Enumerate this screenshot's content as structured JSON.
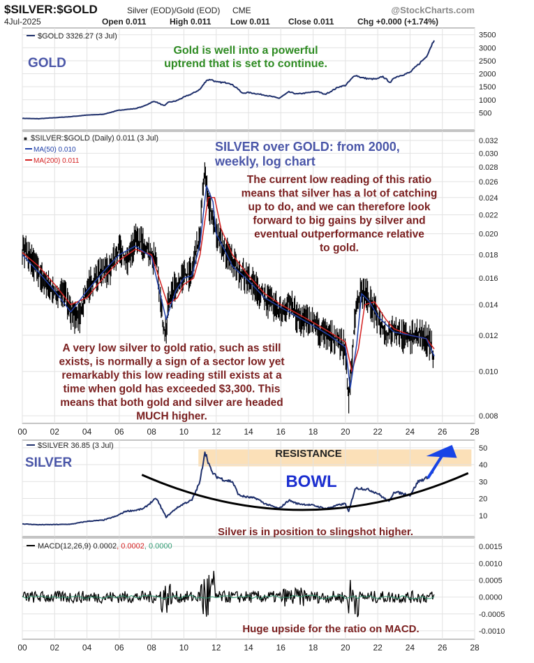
{
  "header": {
    "symbol": "$SILVER:$GOLD",
    "desc": "Silver (EOD)/Gold (EOD)",
    "exchange": "CME",
    "watermark": "@StockCharts.com",
    "date": "4Jul-2025",
    "open": "Open 0.011",
    "high": "High 0.011",
    "low": "Low 0.011",
    "close": "Close 0.011",
    "chg": "Chg +0.000 (+1.74%)"
  },
  "annotations": {
    "gold_label": "GOLD",
    "gold_note_1": "Gold is well into a powerful",
    "gold_note_2": "uptrend that is set to continue.",
    "ratio_title_1": "SILVER over GOLD: from 2000,",
    "ratio_title_2": "weekly, log chart",
    "ratio_note": [
      "The current low reading of this ratio",
      "means that silver has a lot of catching",
      "up to do, and we can therefore look",
      "forward to big gains by silver and",
      "eventual outperformance relative",
      "to gold."
    ],
    "ratio_low_note": [
      "A very low silver to  gold ratio, such as still",
      "exists, is normally a sign of a sector low yet",
      "remarkably this low reading still exists at a",
      "time when gold has exceeded $3,300. This",
      "means that both gold and silver are headed",
      "MUCH higher."
    ],
    "silver_label": "SILVER",
    "resistance": "RESISTANCE",
    "bowl": "BOWL",
    "silver_note": "Silver is in position to slingshot higher.",
    "macd_note": "Huge upside for the ratio on MACD."
  },
  "colors": {
    "frame": "#8a8a8a",
    "grid": "#e2e2e2",
    "price": "#1e2f6b",
    "ratio_bar": "#000000",
    "ma50": "#1f3fa8",
    "ma200": "#d42020",
    "annotation_blue": "#4a56a8",
    "annotation_green": "#2e8b22",
    "annotation_maroon": "#7a1f1f",
    "resistance_band": "#fbe0b8",
    "arrow": "#1844e6",
    "macd_signal": "#2f9a72"
  },
  "chart_data": [
    {
      "type": "line",
      "name": "gold-panel",
      "series": [
        {
          "name": "$GOLD 3326.27 (3 Jul)",
          "x": [
            2000,
            2001,
            2002,
            2003,
            2004,
            2005,
            2006,
            2007,
            2007.5,
            2008,
            2008.2,
            2008.8,
            2009,
            2009.5,
            2010,
            2010.5,
            2011,
            2011.4,
            2011.7,
            2012,
            2012.8,
            2013.3,
            2013.6,
            2014,
            2015,
            2015.9,
            2016.5,
            2017,
            2017.8,
            2018.3,
            2018.7,
            2019,
            2019.6,
            2020,
            2020.6,
            2021,
            2021.5,
            2022,
            2022.3,
            2022.8,
            2023,
            2023.5,
            2024,
            2024.5,
            2025,
            2025.5
          ],
          "y": [
            285,
            270,
            310,
            350,
            410,
            440,
            600,
            660,
            750,
            900,
            940,
            760,
            900,
            950,
            1100,
            1230,
            1400,
            1750,
            1780,
            1680,
            1650,
            1450,
            1250,
            1280,
            1180,
            1060,
            1300,
            1220,
            1280,
            1320,
            1200,
            1290,
            1500,
            1550,
            1950,
            1850,
            1800,
            1800,
            1900,
            1650,
            1850,
            1950,
            2050,
            2350,
            2650,
            3326
          ]
        }
      ],
      "xlim": [
        2000,
        2028
      ],
      "ylim": [
        0,
        3600
      ],
      "yticks": [
        500,
        1000,
        1500,
        2000,
        2500,
        3000,
        3500
      ],
      "grid": true
    },
    {
      "type": "bar",
      "name": "ratio-panel",
      "series": [
        {
          "name": "$SILVER:$GOLD (Daily) 0.011 (3 Jul)",
          "x": [
            2000,
            2000.5,
            2001,
            2001.5,
            2002,
            2002.5,
            2003,
            2003.5,
            2004,
            2004.5,
            2005,
            2005.5,
            2006,
            2006.5,
            2007,
            2007.5,
            2008,
            2008.3,
            2008.7,
            2008.9,
            2009,
            2009.5,
            2010,
            2010.5,
            2011,
            2011.25,
            2011.5,
            2011.7,
            2012,
            2012.5,
            2013,
            2013.5,
            2014,
            2014.5,
            2015,
            2015.5,
            2016,
            2016.5,
            2017,
            2017.5,
            2018,
            2018.5,
            2019,
            2019.5,
            2020,
            2020.2,
            2020.4,
            2020.6,
            2021,
            2021.3,
            2021.6,
            2022,
            2022.5,
            2023,
            2023.5,
            2024,
            2024.5,
            2025,
            2025.3,
            2025.5
          ],
          "y": [
            0.0185,
            0.0178,
            0.0165,
            0.0155,
            0.0148,
            0.015,
            0.0135,
            0.013,
            0.0152,
            0.016,
            0.0165,
            0.017,
            0.0185,
            0.0175,
            0.0195,
            0.019,
            0.018,
            0.0175,
            0.0125,
            0.012,
            0.014,
            0.0155,
            0.0162,
            0.0165,
            0.02,
            0.027,
            0.024,
            0.022,
            0.02,
            0.0185,
            0.0175,
            0.0165,
            0.016,
            0.0152,
            0.0145,
            0.014,
            0.0135,
            0.0142,
            0.0132,
            0.013,
            0.0128,
            0.0122,
            0.012,
            0.0118,
            0.0112,
            0.0085,
            0.0105,
            0.0135,
            0.015,
            0.0148,
            0.014,
            0.0132,
            0.012,
            0.0125,
            0.012,
            0.0118,
            0.0122,
            0.0118,
            0.0115,
            0.0105
          ]
        },
        {
          "name": "MA(50) 0.010",
          "x": [
            2000,
            2001,
            2002,
            2003,
            2004,
            2005,
            2006,
            2007,
            2008,
            2008.9,
            2009.5,
            2010,
            2010.5,
            2011,
            2011.4,
            2011.8,
            2012,
            2012.5,
            2013,
            2014,
            2015,
            2016,
            2017,
            2018,
            2019,
            2020,
            2020.3,
            2020.7,
            2021,
            2021.5,
            2022,
            2023,
            2024,
            2025,
            2025.5
          ],
          "y": [
            0.018,
            0.0165,
            0.015,
            0.0135,
            0.015,
            0.0165,
            0.018,
            0.0188,
            0.0178,
            0.013,
            0.015,
            0.016,
            0.0162,
            0.019,
            0.0255,
            0.0235,
            0.02,
            0.0185,
            0.017,
            0.0158,
            0.0145,
            0.0138,
            0.0132,
            0.0126,
            0.012,
            0.0113,
            0.0092,
            0.0115,
            0.0148,
            0.0142,
            0.0132,
            0.0122,
            0.012,
            0.0118,
            0.0108
          ]
        },
        {
          "name": "MA(200) 0.011",
          "x": [
            2000,
            2001,
            2002,
            2003,
            2004,
            2005,
            2006,
            2007,
            2008,
            2009,
            2009.6,
            2010,
            2010.6,
            2011,
            2011.5,
            2011.9,
            2012.3,
            2013,
            2014,
            2015,
            2016,
            2017,
            2018,
            2019,
            2020,
            2020.4,
            2020.8,
            2021.2,
            2021.8,
            2022.5,
            2023,
            2024,
            2025,
            2025.5
          ],
          "y": [
            0.0182,
            0.017,
            0.0155,
            0.014,
            0.0145,
            0.016,
            0.0175,
            0.0185,
            0.018,
            0.014,
            0.0145,
            0.0155,
            0.016,
            0.018,
            0.024,
            0.024,
            0.0205,
            0.018,
            0.0162,
            0.0148,
            0.014,
            0.0134,
            0.0128,
            0.0122,
            0.0116,
            0.01,
            0.0112,
            0.014,
            0.0142,
            0.013,
            0.0124,
            0.012,
            0.0118,
            0.0112
          ]
        }
      ],
      "scale": "log",
      "xlim": [
        2000,
        2028
      ],
      "ylim": [
        0.0077,
        0.0335
      ],
      "yticks": [
        0.008,
        0.01,
        0.012,
        0.014,
        0.016,
        0.018,
        0.02,
        0.022,
        0.024,
        0.026,
        0.028,
        0.03,
        0.032
      ],
      "ytick_labels": [
        "0.008",
        "0.010",
        "0.012",
        "0.014",
        "0.016",
        "0.018",
        "0.020",
        "0.022",
        "0.024",
        "0.026",
        "0.028",
        "0.030",
        "0.032"
      ],
      "xticks": [
        2000,
        2002,
        2004,
        2006,
        2008,
        2010,
        2012,
        2014,
        2016,
        2018,
        2020,
        2022,
        2024,
        2026,
        2028
      ],
      "xtick_labels": [
        "00",
        "02",
        "04",
        "06",
        "08",
        "10",
        "12",
        "14",
        "16",
        "18",
        "20",
        "22",
        "24",
        "26",
        "28"
      ],
      "grid": true
    },
    {
      "type": "line",
      "name": "silver-panel",
      "series": [
        {
          "name": "$SILVER 36.85 (3 Jul)",
          "x": [
            2000,
            2001,
            2002,
            2003,
            2004,
            2005,
            2005.8,
            2006.4,
            2007,
            2007.5,
            2008,
            2008.3,
            2008.9,
            2009.5,
            2010,
            2010.5,
            2011,
            2011.3,
            2011.7,
            2012,
            2012.5,
            2013,
            2013.4,
            2013.8,
            2014.5,
            2015,
            2015.9,
            2016.5,
            2017,
            2018,
            2018.8,
            2019.5,
            2020,
            2020.2,
            2020.6,
            2021,
            2021.5,
            2022,
            2022.7,
            2023,
            2023.5,
            2024,
            2024.5,
            2025,
            2025.5
          ],
          "y": [
            5,
            4.5,
            4.6,
            4.8,
            6.5,
            7.2,
            9.5,
            12.5,
            13,
            14,
            18,
            20,
            9,
            14,
            17,
            19,
            30,
            48,
            36,
            33,
            31,
            30,
            22,
            21,
            20,
            17,
            14,
            19,
            17,
            16,
            14,
            16,
            17,
            12,
            26,
            26,
            25,
            23,
            18,
            24,
            23,
            22,
            30,
            32,
            36.85
          ]
        }
      ],
      "xlim": [
        2000,
        2028
      ],
      "ylim": [
        0,
        52
      ],
      "yticks": [
        10,
        20,
        30,
        40,
        50
      ],
      "resistance_range": [
        39,
        49
      ],
      "grid": true
    },
    {
      "type": "line",
      "name": "macd-panel",
      "series": [
        {
          "name": "MACD(12,26,9) 0.0002, 0.0002, 0.0000"
        }
      ],
      "xlim": [
        2000,
        2028
      ],
      "ylim": [
        -0.00125,
        0.00175
      ],
      "yticks": [
        -0.001,
        -0.0005,
        0.0,
        0.0005,
        0.001,
        0.0015
      ],
      "ytick_labels": [
        "-0.0010",
        "-0.0005",
        "0.0000",
        "0.0005",
        "0.0010",
        "0.0015"
      ],
      "xticks": [
        2000,
        2002,
        2004,
        2006,
        2008,
        2010,
        2012,
        2014,
        2016,
        2018,
        2020,
        2022,
        2024,
        2026,
        2028
      ],
      "xtick_labels": [
        "00",
        "02",
        "04",
        "06",
        "08",
        "10",
        "12",
        "14",
        "16",
        "18",
        "20",
        "22",
        "24",
        "26",
        "28"
      ],
      "grid": true
    }
  ]
}
